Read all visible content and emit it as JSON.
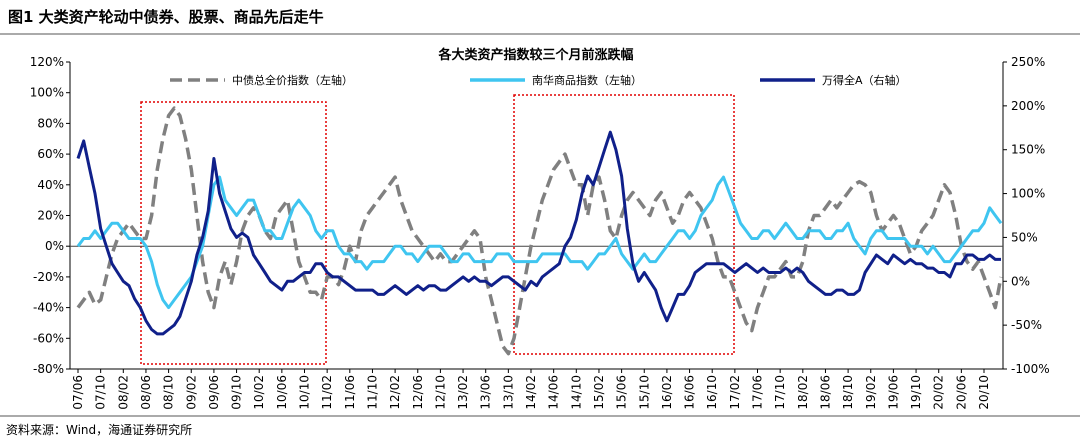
{
  "header": "图1  大类资产轮动中债券、股票、商品先后走牛",
  "source": "资料来源：Wind，海通证券研究所",
  "chart_data": {
    "type": "line",
    "title": "各大类资产指数较三个月前涨跌幅",
    "categories": [
      "07/06",
      null,
      null,
      null,
      "07/10",
      null,
      null,
      null,
      "08/02",
      null,
      null,
      null,
      "08/06",
      null,
      null,
      null,
      "08/10",
      null,
      null,
      null,
      "09/02",
      null,
      null,
      null,
      "09/06",
      null,
      null,
      null,
      "09/10",
      null,
      null,
      null,
      "10/02",
      null,
      null,
      null,
      "10/06",
      null,
      null,
      null,
      "10/10",
      null,
      null,
      null,
      "11/02",
      null,
      null,
      null,
      "11/06",
      null,
      null,
      null,
      "11/10",
      null,
      null,
      null,
      "12/02",
      null,
      null,
      null,
      "12/06",
      null,
      null,
      null,
      "12/10",
      null,
      null,
      null,
      "13/02",
      null,
      null,
      null,
      "13/06",
      null,
      null,
      null,
      "13/10",
      null,
      null,
      null,
      "14/02",
      null,
      null,
      null,
      "14/06",
      null,
      null,
      null,
      "14/10",
      null,
      null,
      null,
      "15/02",
      null,
      null,
      null,
      "15/06",
      null,
      null,
      null,
      "15/10",
      null,
      null,
      null,
      "16/02",
      null,
      null,
      null,
      "16/06",
      null,
      null,
      null,
      "16/10",
      null,
      null,
      null,
      "17/02",
      null,
      null,
      null,
      "17/06",
      null,
      null,
      null,
      "17/10",
      null,
      null,
      null,
      "18/02",
      null,
      null,
      null,
      "18/06",
      null,
      null,
      null,
      "18/10",
      null,
      null,
      null,
      "19/02",
      null,
      null,
      null,
      "19/06",
      null,
      null,
      null,
      "19/10",
      null,
      null,
      null,
      "20/02",
      null,
      null,
      null,
      "20/06",
      null,
      null,
      null,
      "20/10",
      null,
      null,
      null
    ],
    "series": [
      {
        "name": "中债总全价指数（左轴）",
        "color": "#808080",
        "style": "dashed",
        "values": [
          -40,
          -35,
          -30,
          -38,
          -35,
          -20,
          -5,
          5,
          10,
          15,
          10,
          5,
          5,
          20,
          50,
          70,
          85,
          90,
          85,
          70,
          50,
          20,
          -10,
          -30,
          -40,
          -20,
          -10,
          -25,
          -10,
          10,
          20,
          25,
          20,
          10,
          5,
          20,
          25,
          30,
          10,
          -10,
          -20,
          -30,
          -30,
          -35,
          -20,
          -20,
          -25,
          -15,
          0,
          -10,
          10,
          20,
          25,
          30,
          35,
          40,
          45,
          30,
          20,
          10,
          5,
          0,
          -5,
          -10,
          -5,
          -10,
          -10,
          -5,
          0,
          5,
          10,
          5,
          -20,
          -35,
          -50,
          -65,
          -70,
          -60,
          -40,
          -20,
          0,
          15,
          30,
          40,
          50,
          55,
          60,
          50,
          40,
          40,
          20,
          40,
          45,
          30,
          10,
          5,
          20,
          30,
          35,
          30,
          25,
          20,
          30,
          35,
          25,
          15,
          20,
          30,
          35,
          30,
          25,
          15,
          5,
          -10,
          -20,
          -20,
          -30,
          -40,
          -50,
          -55,
          -40,
          -30,
          -20,
          -20,
          -15,
          -10,
          -20,
          -20,
          -10,
          10,
          20,
          20,
          25,
          30,
          25,
          30,
          35,
          40,
          42,
          40,
          35,
          20,
          10,
          15,
          20,
          15,
          5,
          -5,
          0,
          10,
          15,
          20,
          30,
          40,
          35,
          20,
          0,
          -10,
          -15,
          -10,
          -20,
          -30,
          -40,
          -20
        ]
      },
      {
        "name": "南华商品指数（左轴）",
        "color": "#3fc5f0",
        "style": "solid",
        "values": [
          0,
          5,
          5,
          10,
          5,
          10,
          15,
          15,
          10,
          5,
          5,
          5,
          0,
          -10,
          -25,
          -35,
          -40,
          -35,
          -30,
          -25,
          -20,
          -10,
          0,
          20,
          40,
          45,
          30,
          25,
          20,
          25,
          30,
          30,
          20,
          10,
          10,
          5,
          5,
          15,
          25,
          30,
          25,
          20,
          10,
          5,
          10,
          10,
          0,
          -5,
          -5,
          -10,
          -10,
          -15,
          -10,
          -10,
          -10,
          -5,
          0,
          0,
          -5,
          -5,
          -10,
          -5,
          0,
          0,
          0,
          -5,
          -10,
          -10,
          -5,
          -5,
          -10,
          -10,
          -10,
          -10,
          -5,
          -5,
          -5,
          -10,
          -10,
          -10,
          -10,
          -10,
          -5,
          -5,
          -5,
          -5,
          -5,
          -10,
          -10,
          -10,
          -15,
          -10,
          -5,
          -5,
          0,
          5,
          -5,
          -10,
          -15,
          -10,
          -5,
          -10,
          -10,
          -5,
          0,
          5,
          10,
          10,
          5,
          10,
          20,
          25,
          30,
          40,
          45,
          35,
          25,
          15,
          10,
          5,
          5,
          10,
          10,
          5,
          10,
          15,
          10,
          5,
          5,
          10,
          10,
          10,
          5,
          5,
          10,
          10,
          15,
          5,
          0,
          -5,
          5,
          10,
          10,
          5,
          5,
          5,
          5,
          0,
          0,
          0,
          -5,
          0,
          -5,
          -10,
          -10,
          -5,
          0,
          5,
          10,
          10,
          15,
          25,
          20,
          15
        ]
      },
      {
        "name": "万得全A（右轴）",
        "color": "#10208a",
        "style": "solid",
        "axis": "y2",
        "values": [
          140,
          160,
          130,
          100,
          60,
          40,
          20,
          10,
          0,
          -5,
          -20,
          -30,
          -45,
          -55,
          -60,
          -60,
          -55,
          -50,
          -40,
          -20,
          0,
          30,
          50,
          80,
          140,
          100,
          80,
          60,
          50,
          55,
          50,
          30,
          20,
          10,
          0,
          -5,
          -10,
          0,
          0,
          5,
          10,
          10,
          20,
          20,
          10,
          5,
          5,
          0,
          -5,
          -10,
          -10,
          -10,
          -10,
          -15,
          -15,
          -10,
          -5,
          -10,
          -15,
          -10,
          -5,
          -10,
          -5,
          -5,
          -10,
          -10,
          -5,
          0,
          5,
          0,
          5,
          0,
          0,
          -5,
          0,
          5,
          5,
          0,
          -5,
          -10,
          0,
          -5,
          5,
          10,
          15,
          20,
          40,
          50,
          70,
          100,
          120,
          110,
          130,
          150,
          170,
          150,
          120,
          60,
          20,
          0,
          10,
          0,
          -10,
          -30,
          -45,
          -30,
          -15,
          -15,
          -5,
          10,
          15,
          20,
          20,
          20,
          20,
          15,
          10,
          15,
          20,
          15,
          10,
          15,
          10,
          10,
          10,
          15,
          10,
          15,
          10,
          0,
          -5,
          -10,
          -15,
          -15,
          -10,
          -10,
          -15,
          -15,
          -10,
          10,
          20,
          30,
          25,
          20,
          30,
          25,
          20,
          25,
          20,
          20,
          15,
          15,
          10,
          10,
          5,
          20,
          20,
          30,
          30,
          25,
          25,
          30,
          25,
          25
        ]
      }
    ],
    "ylim": [
      -80,
      120
    ],
    "yticks": [
      {
        "value": -80,
        "label": "-80%"
      },
      {
        "value": -60,
        "label": "-60%"
      },
      {
        "value": -40,
        "label": "-40%"
      },
      {
        "value": -20,
        "label": "-20%"
      },
      {
        "value": 0,
        "label": "0%"
      },
      {
        "value": 20,
        "label": "20%"
      },
      {
        "value": 40,
        "label": "40%"
      },
      {
        "value": 60,
        "label": "60%"
      },
      {
        "value": 80,
        "label": "80%"
      },
      {
        "value": 100,
        "label": "100%"
      },
      {
        "value": 120,
        "label": "120%"
      }
    ],
    "y2lim": [
      -100,
      250
    ],
    "y2ticks": [
      {
        "value": -100,
        "label": "-100%"
      },
      {
        "value": -50,
        "label": "-50%"
      },
      {
        "value": 0,
        "label": "0%"
      },
      {
        "value": 50,
        "label": "50%"
      },
      {
        "value": 100,
        "label": "100%"
      },
      {
        "value": 150,
        "label": "150%"
      },
      {
        "value": 200,
        "label": "200%"
      },
      {
        "value": 250,
        "label": "250%"
      }
    ]
  }
}
